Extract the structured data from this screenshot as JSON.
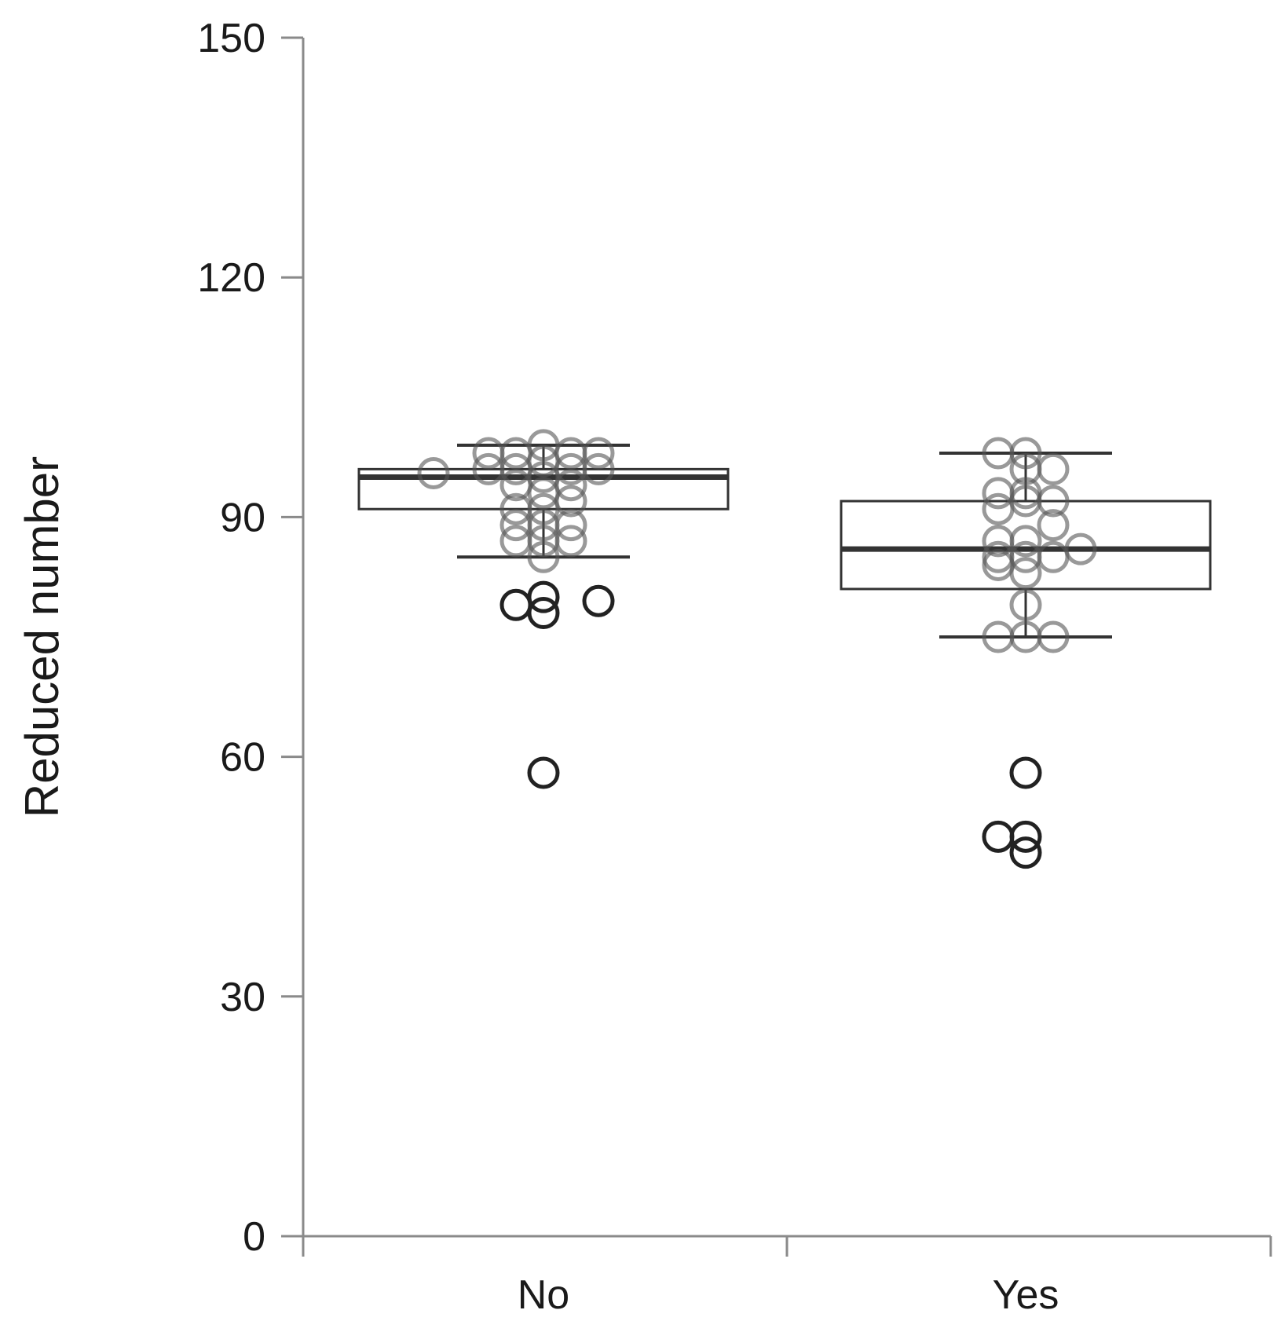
{
  "chart_data": {
    "type": "box",
    "title": "",
    "xlabel": "",
    "ylabel": "Reduced number",
    "ylim": [
      0,
      150
    ],
    "yticks": [
      0,
      30,
      60,
      90,
      120,
      150
    ],
    "ytick_labels": [
      "0",
      "30",
      "60",
      "90",
      "120",
      "150"
    ],
    "categories": [
      "No",
      "Yes"
    ],
    "grid": false,
    "legend": "none",
    "colors": {
      "box": "#333333",
      "axis": "#8a8a8a",
      "point": "#555555",
      "outlier": "#222222"
    },
    "boxes": [
      {
        "category": "No",
        "q1": 91,
        "median": 95,
        "q3": 96,
        "whisker_low": 85,
        "whisker_high": 99
      },
      {
        "category": "Yes",
        "q1": 81,
        "median": 86,
        "q3": 92,
        "whisker_low": 75,
        "whisker_high": 98
      }
    ],
    "points": [
      {
        "category": "No",
        "values": [
          {
            "y": 95.5,
            "j": -1.0
          },
          {
            "y": 98,
            "j": -0.5
          },
          {
            "y": 96,
            "j": -0.5
          },
          {
            "y": 98,
            "j": -0.25
          },
          {
            "y": 96,
            "j": -0.25
          },
          {
            "y": 94,
            "j": -0.25
          },
          {
            "y": 91,
            "j": -0.25
          },
          {
            "y": 89,
            "j": -0.25
          },
          {
            "y": 87,
            "j": -0.25
          },
          {
            "y": 99,
            "j": 0
          },
          {
            "y": 97,
            "j": 0
          },
          {
            "y": 95,
            "j": 0
          },
          {
            "y": 93,
            "j": 0
          },
          {
            "y": 91,
            "j": 0
          },
          {
            "y": 89,
            "j": 0
          },
          {
            "y": 87,
            "j": 0
          },
          {
            "y": 85,
            "j": 0
          },
          {
            "y": 98,
            "j": 0.25
          },
          {
            "y": 96,
            "j": 0.25
          },
          {
            "y": 94,
            "j": 0.25
          },
          {
            "y": 92,
            "j": 0.25
          },
          {
            "y": 89,
            "j": 0.25
          },
          {
            "y": 87,
            "j": 0.25
          },
          {
            "y": 98,
            "j": 0.5
          },
          {
            "y": 96,
            "j": 0.5
          }
        ]
      },
      {
        "category": "Yes",
        "values": [
          {
            "y": 98,
            "j": -0.25
          },
          {
            "y": 93,
            "j": -0.25
          },
          {
            "y": 91,
            "j": -0.25
          },
          {
            "y": 87,
            "j": -0.25
          },
          {
            "y": 85,
            "j": -0.25
          },
          {
            "y": 84,
            "j": -0.25
          },
          {
            "y": 75,
            "j": -0.25
          },
          {
            "y": 98,
            "j": 0
          },
          {
            "y": 96,
            "j": 0
          },
          {
            "y": 93,
            "j": 0
          },
          {
            "y": 92,
            "j": 0
          },
          {
            "y": 87,
            "j": 0
          },
          {
            "y": 85,
            "j": 0
          },
          {
            "y": 83,
            "j": 0
          },
          {
            "y": 79,
            "j": 0
          },
          {
            "y": 75,
            "j": 0
          },
          {
            "y": 96,
            "j": 0.25
          },
          {
            "y": 92,
            "j": 0.25
          },
          {
            "y": 89,
            "j": 0.25
          },
          {
            "y": 85,
            "j": 0.25
          },
          {
            "y": 75,
            "j": 0.25
          },
          {
            "y": 86,
            "j": 0.5
          }
        ]
      }
    ],
    "outliers": [
      {
        "category": "No",
        "values": [
          {
            "y": 79,
            "j": -0.25
          },
          {
            "y": 80,
            "j": 0
          },
          {
            "y": 78,
            "j": 0
          },
          {
            "y": 79.5,
            "j": 0.5
          },
          {
            "y": 58,
            "j": 0
          }
        ]
      },
      {
        "category": "Yes",
        "values": [
          {
            "y": 58,
            "j": 0
          },
          {
            "y": 50,
            "j": -0.25
          },
          {
            "y": 50,
            "j": 0
          },
          {
            "y": 48,
            "j": 0
          }
        ]
      }
    ]
  }
}
